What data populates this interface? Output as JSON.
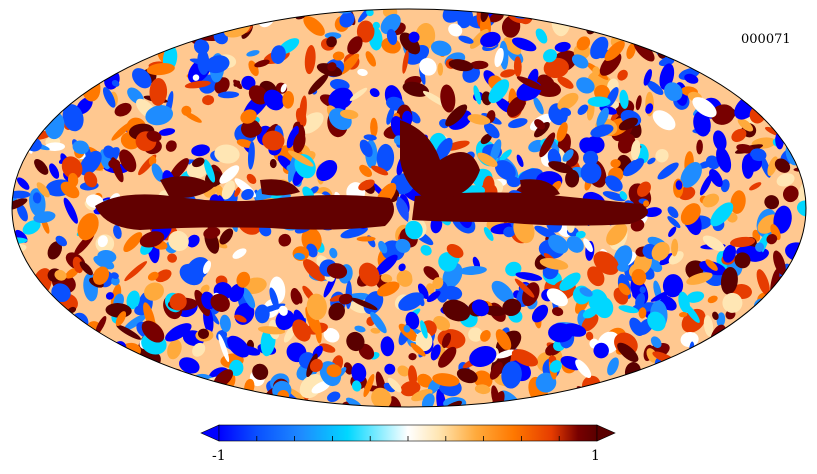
{
  "map": {
    "identifier": "000071",
    "projection": "mollweide"
  },
  "colorbar": {
    "min_label": "-1",
    "max_label": "1",
    "min": -1,
    "max": 1,
    "ticks": 10,
    "colors": [
      "#0000ff",
      "#0a50ff",
      "#1e8cff",
      "#00d7ff",
      "#ffffff",
      "#ffe6b4",
      "#ffaa3c",
      "#ff7800",
      "#e63c00",
      "#780000",
      "#5a0000"
    ]
  }
}
